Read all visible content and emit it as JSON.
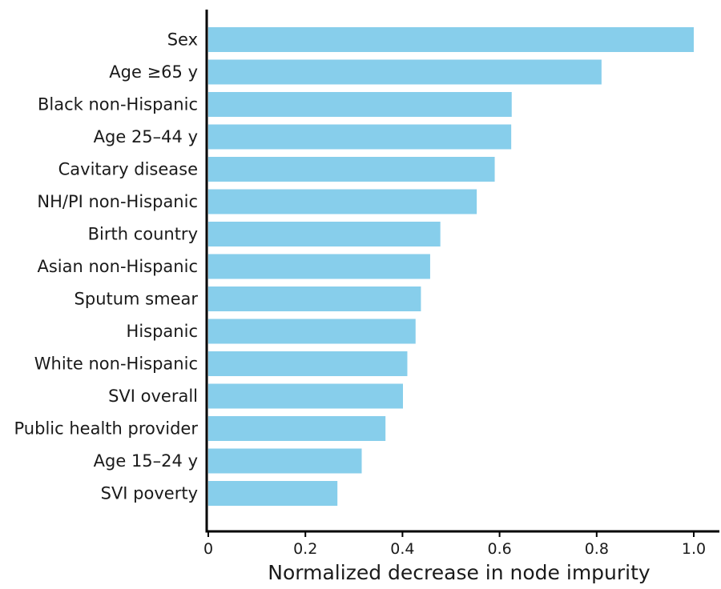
{
  "chart_data": {
    "type": "bar",
    "orientation": "horizontal",
    "categories": [
      "Sex",
      "Age ≥65 y",
      "Black non-Hispanic",
      "Age 25–44 y",
      "Cavitary disease",
      "NH/PI non-Hispanic",
      "Birth country",
      "Asian non-Hispanic",
      "Sputum smear",
      "Hispanic",
      "White non-Hispanic",
      "SVI overall",
      "Public health provider",
      "Age 15–24 y",
      "SVI poverty"
    ],
    "values": [
      1.0,
      0.81,
      0.625,
      0.624,
      0.59,
      0.553,
      0.478,
      0.457,
      0.438,
      0.427,
      0.41,
      0.401,
      0.365,
      0.316,
      0.266
    ],
    "xlabel": "Normalized decrease in node impurity",
    "ylabel": "",
    "xlim": [
      0,
      1.0
    ],
    "xticks": [
      0,
      0.2,
      0.4,
      0.6,
      0.8,
      1.0
    ],
    "xtick_labels": [
      "0",
      "0.2",
      "0.4",
      "0.6",
      "0.8",
      "1.0"
    ],
    "bar_color": "#87ceeb",
    "grid": false,
    "legend": "none"
  }
}
